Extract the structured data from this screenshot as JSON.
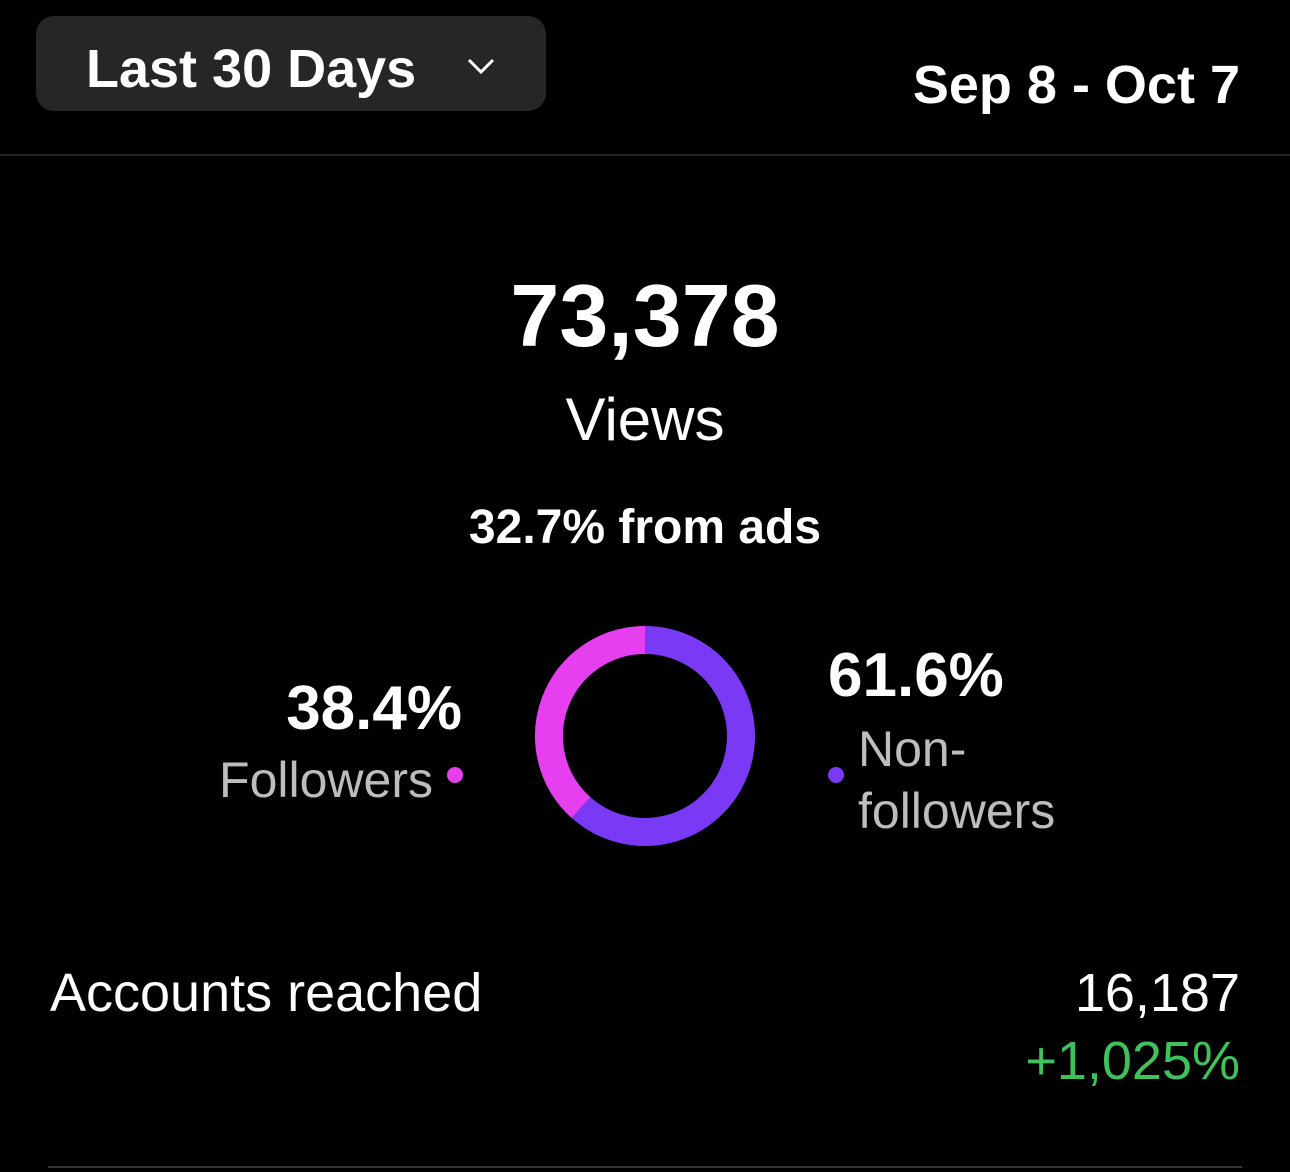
{
  "header": {
    "range_button": "Last 30 Days",
    "date_range": "Sep 8 - Oct 7"
  },
  "summary": {
    "total": "73,378",
    "label": "Views",
    "ads_note": "32.7% from ads"
  },
  "chart_data": {
    "type": "donut",
    "categories": [
      "Followers",
      "Non-followers"
    ],
    "values": [
      38.4,
      61.6
    ],
    "value_labels": [
      "38.4%",
      "61.6%"
    ],
    "colors": [
      "#e63ff0",
      "#7a3af5"
    ]
  },
  "metrics": [
    {
      "label": "Accounts reached",
      "value": "16,187",
      "change": "+1,025%"
    }
  ]
}
